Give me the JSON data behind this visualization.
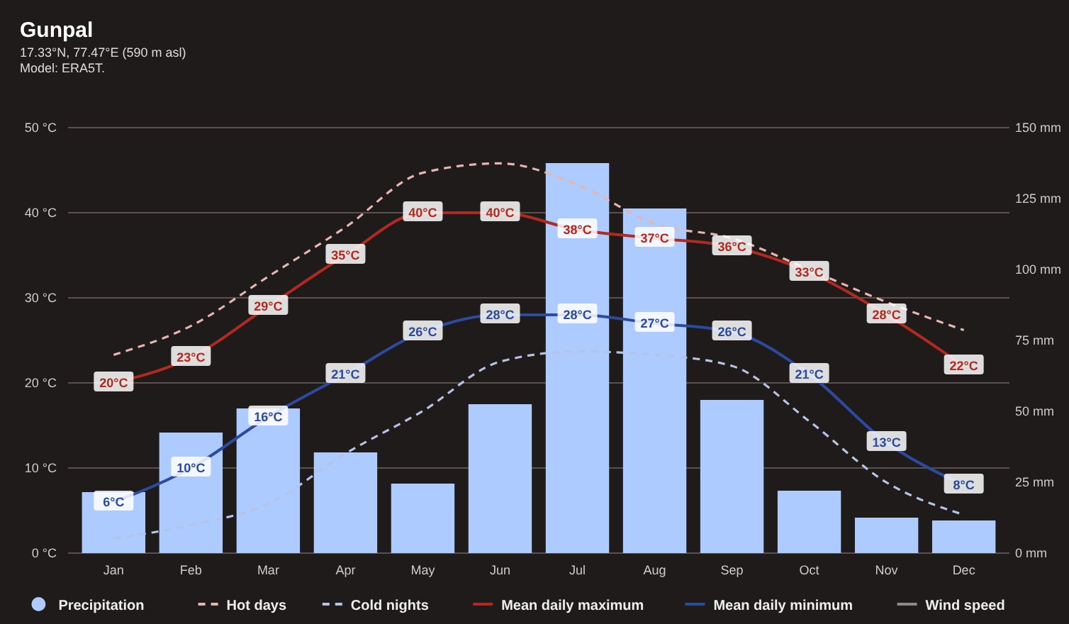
{
  "chart_data": {
    "type": "line",
    "title": "Gunpal",
    "subtitle": "17.33°N, 77.47°E (590 m asl)\nModel: ERA5T.",
    "categories": [
      "Jan",
      "Feb",
      "Mar",
      "Apr",
      "May",
      "Jun",
      "Jul",
      "Aug",
      "Sep",
      "Oct",
      "Nov",
      "Dec"
    ],
    "series": [
      {
        "name": "Precipitation",
        "type": "bar",
        "axis": "y2",
        "color": "#aecbff",
        "values": [
          21.5,
          42.5,
          51,
          35.5,
          24.5,
          52.5,
          137.5,
          121.5,
          54,
          22,
          12.5,
          11.5
        ]
      },
      {
        "name": "Hot days",
        "line_style": "dashed",
        "color": "#e6b5ae",
        "values": [
          23.3,
          26.7,
          32.5,
          38.3,
          44.7,
          45.8,
          43.3,
          38.7,
          37,
          33.3,
          29.5,
          26.2
        ]
      },
      {
        "name": "Cold nights",
        "line_style": "dashed",
        "color": "#b5c3e6",
        "values": [
          1.7,
          3.3,
          5.8,
          11.7,
          16.7,
          22.5,
          23.7,
          23.3,
          22,
          15.5,
          8.3,
          4.5
        ]
      },
      {
        "name": "Mean daily maximum",
        "line_style": "solid",
        "marker": "square",
        "color": "#b02a20",
        "values": [
          20,
          23,
          29,
          35,
          40,
          40,
          38,
          37,
          36,
          33,
          28,
          22
        ],
        "value_labels": [
          "20°C",
          "23°C",
          "29°C",
          "35°C",
          "40°C",
          "40°C",
          "38°C",
          "37°C",
          "36°C",
          "33°C",
          "28°C",
          "22°C"
        ]
      },
      {
        "name": "Mean daily minimum",
        "line_style": "solid",
        "marker": "square",
        "color": "#2c4a9e",
        "values": [
          6,
          10,
          16,
          21,
          26,
          28,
          28,
          27,
          26,
          21,
          13,
          8
        ],
        "value_labels": [
          "6°C",
          "10°C",
          "16°C",
          "21°C",
          "26°C",
          "28°C",
          "28°C",
          "27°C",
          "26°C",
          "21°C",
          "13°C",
          "8°C"
        ]
      },
      {
        "name": "Wind speed",
        "line_style": "solid",
        "color": "#8a8a8a",
        "values": [
          null,
          null,
          null,
          null,
          null,
          null,
          null,
          null,
          null,
          null,
          null,
          null
        ]
      }
    ],
    "ylim": [
      0,
      50
    ],
    "yticks": [
      {
        "value": 0,
        "label": "0 °C"
      },
      {
        "value": 10,
        "label": "10 °C"
      },
      {
        "value": 20,
        "label": "20 °C"
      },
      {
        "value": 30,
        "label": "30 °C"
      },
      {
        "value": 40,
        "label": "40 °C"
      },
      {
        "value": 50,
        "label": "50 °C"
      }
    ],
    "y2lim": [
      0,
      150
    ],
    "y2ticks": [
      {
        "value": 0,
        "label": "0 mm"
      },
      {
        "value": 25,
        "label": "25 mm"
      },
      {
        "value": 50,
        "label": "50 mm"
      },
      {
        "value": 75,
        "label": "75 mm"
      },
      {
        "value": 100,
        "label": "100 mm"
      },
      {
        "value": 125,
        "label": "125 mm"
      },
      {
        "value": 150,
        "label": "150 mm"
      }
    ],
    "grid": "y",
    "legend": "bottom"
  }
}
